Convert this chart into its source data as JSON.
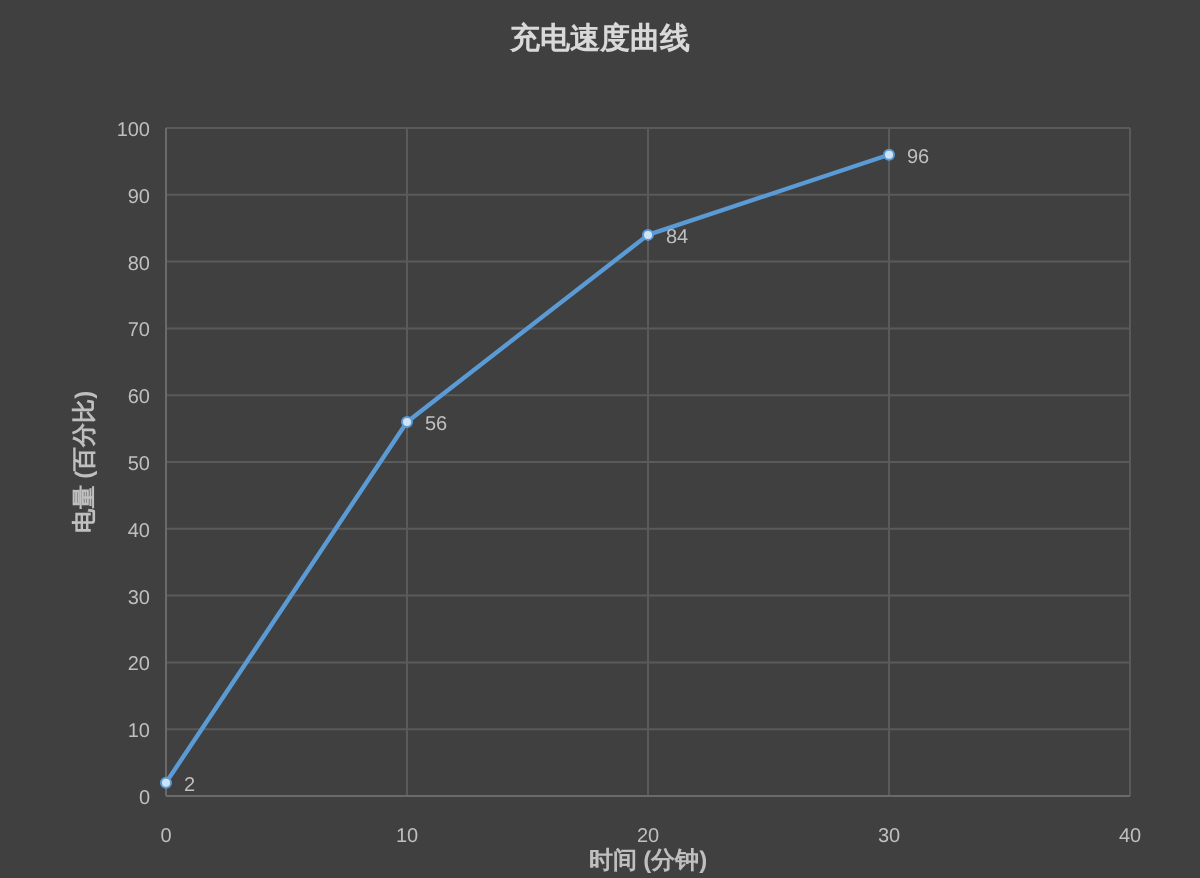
{
  "chart_data": {
    "type": "line",
    "title": "充电速度曲线",
    "xlabel": "时间 (分钟)",
    "ylabel": "电量 (百分比)",
    "x": [
      0,
      10,
      20,
      30
    ],
    "series": [
      {
        "color": "#5b9bd5",
        "values": [
          2,
          56,
          84,
          96
        ]
      }
    ],
    "xlim": [
      0,
      40
    ],
    "xticks": [
      0,
      10,
      20,
      30,
      40
    ],
    "ylim": [
      0,
      100
    ],
    "yticks": [
      0,
      10,
      20,
      30,
      40,
      50,
      60,
      70,
      80,
      90,
      100
    ],
    "grid": true,
    "marker": "circle",
    "data_labels": true
  }
}
